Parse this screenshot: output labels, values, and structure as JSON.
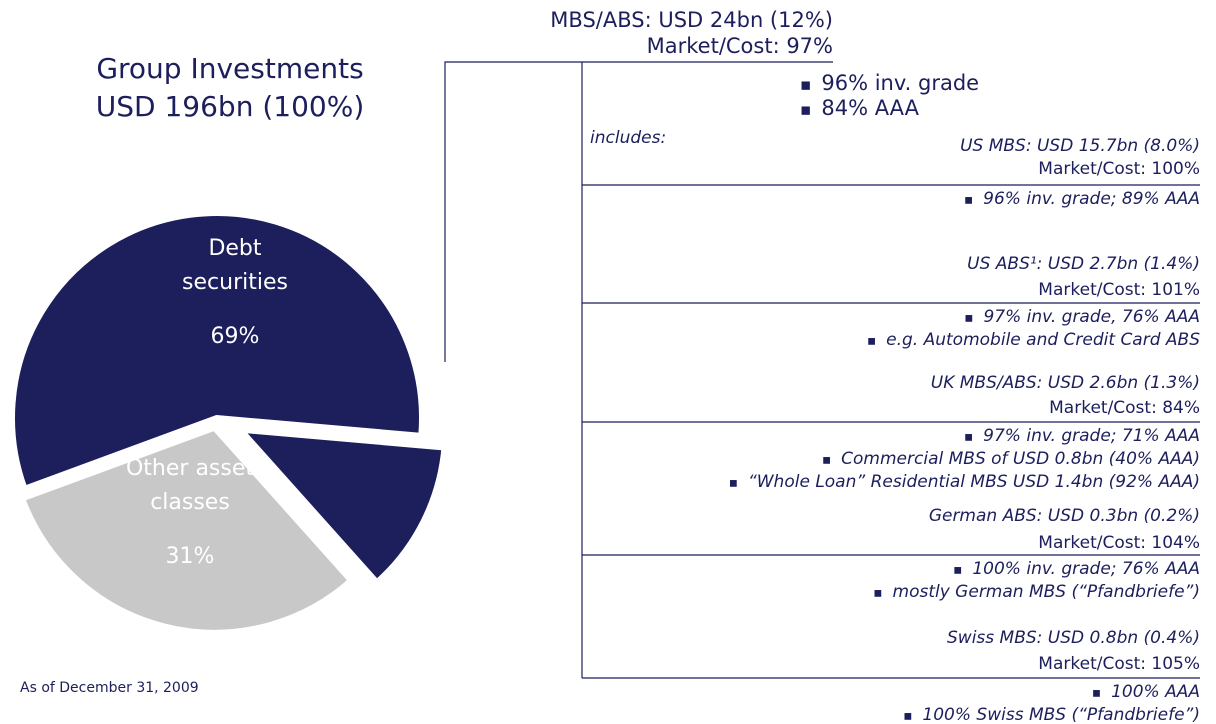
{
  "chart_data": {
    "type": "pie",
    "title": "Group Investments",
    "subtitle": "USD 196bn (100%)",
    "categories": [
      "Debt securities",
      "Other asset classes"
    ],
    "values": [
      69,
      31
    ],
    "value_labels": [
      "69%",
      "31%"
    ],
    "colors": [
      "#1c1f5c",
      "#c8c8c8"
    ],
    "label_colors": [
      "#ffffff",
      "#ffffff"
    ],
    "highlight": {
      "of": 0,
      "value": 12,
      "color": "#1c1f5c"
    },
    "footnote": "As of December 31, 2009"
  },
  "breakdown": {
    "title": "MBS/ABS: USD 24bn (12%)",
    "market": "Market/Cost: 97%",
    "bullets": [
      "96% inv. grade",
      "84% AAA"
    ],
    "includes": "includes:",
    "items": [
      {
        "title": "US MBS: USD 15.7bn (8.0%)",
        "market": "Market/Cost: 100%",
        "bullets": [
          "96% inv. grade; 89% AAA"
        ]
      },
      {
        "title": "US ABS¹: USD 2.7bn (1.4%)",
        "market": "Market/Cost: 101%",
        "bullets": [
          "97% inv. grade, 76% AAA",
          "e.g. Automobile and Credit Card ABS"
        ]
      },
      {
        "title": "UK MBS/ABS: USD 2.6bn (1.3%)",
        "market": "Market/Cost: 84%",
        "bullets": [
          "97% inv. grade; 71% AAA",
          "Commercial MBS of USD 0.8bn (40% AAA)",
          "“Whole Loan” Residential MBS USD 1.4bn (92% AAA)"
        ]
      },
      {
        "title": "German ABS: USD 0.3bn (0.2%)",
        "market": "Market/Cost: 104%",
        "bullets": [
          "100% inv. grade; 76% AAA",
          "mostly German MBS (“Pfandbriefe”)"
        ]
      },
      {
        "title": "Swiss MBS: USD 0.8bn (0.4%)",
        "market": "Market/Cost: 105%",
        "bullets": [
          "100% AAA",
          "100% Swiss MBS (“Pfandbriefe”)"
        ]
      }
    ]
  }
}
